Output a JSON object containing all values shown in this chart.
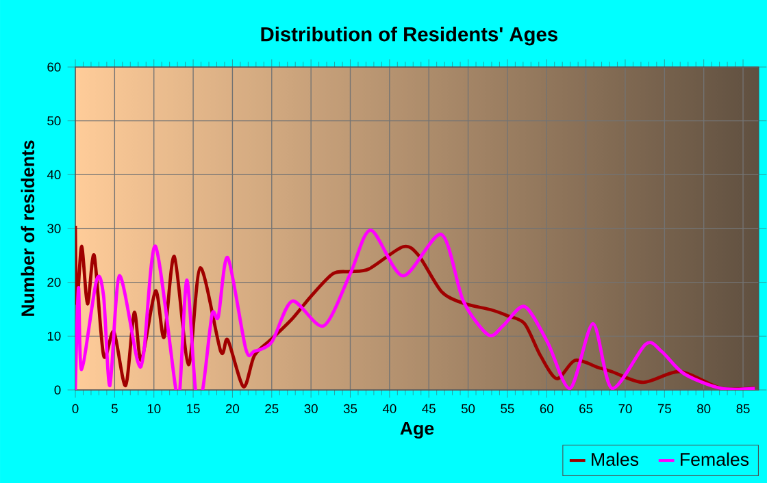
{
  "chart_data": {
    "type": "line",
    "title": "Distribution of Residents' Ages",
    "xlabel": "Age",
    "ylabel": "Number of residents",
    "xlim": [
      0,
      87
    ],
    "ylim": [
      0,
      60
    ],
    "xticks": [
      0,
      5,
      10,
      15,
      20,
      25,
      30,
      35,
      40,
      45,
      50,
      55,
      60,
      65,
      70,
      75,
      80,
      85
    ],
    "yticks": [
      0,
      10,
      20,
      30,
      40,
      50,
      60
    ],
    "grid": true,
    "legend": "bottom right",
    "marker": "none",
    "series": [
      {
        "name": "Males",
        "color": "#a00000",
        "x": [
          0,
          0.2,
          0.8,
          1.55,
          2.4,
          3.6,
          4.9,
          6.4,
          7.5,
          8.4,
          10.2,
          11.3,
          12.6,
          14.4,
          15.9,
          18.5,
          19.4,
          21.4,
          22.8,
          25,
          27.6,
          30,
          32.8,
          35,
          37.4,
          41.7,
          43.7,
          46.6,
          49.4,
          52.9,
          55,
          57.2,
          59.2,
          61.3,
          63.6,
          66.5,
          68.3,
          72.3,
          77,
          82.2,
          86.5
        ],
        "values": [
          30.5,
          16,
          26.7,
          16,
          25,
          6.4,
          10.8,
          0.8,
          14.4,
          5.5,
          18.4,
          9.8,
          24.8,
          4.7,
          22.7,
          7.2,
          9.3,
          0.6,
          6.4,
          9.5,
          13.2,
          17.4,
          21.6,
          22,
          22.5,
          26.6,
          25,
          18.3,
          16.1,
          14.9,
          13.8,
          12.3,
          6.4,
          2.1,
          5.5,
          4.2,
          3.4,
          1.4,
          3.4,
          0.3,
          0.4
        ]
      },
      {
        "name": "Females",
        "color": "#ff00ff",
        "x": [
          0,
          0.4,
          0.8,
          2.7,
          3.6,
          4.4,
          5.6,
          7.9,
          8.7,
          10.2,
          12.8,
          13.3,
          14.2,
          15.3,
          16.2,
          17.4,
          18.2,
          19.4,
          21.7,
          22.8,
          25,
          27.6,
          31.6,
          35,
          37.6,
          41.7,
          46.6,
          49.4,
          52.6,
          54.5,
          57.2,
          60.1,
          63,
          65.9,
          68.3,
          72.6,
          74.6,
          77.5,
          82.2,
          86.5
        ],
        "values": [
          0,
          19,
          3.8,
          20.4,
          17.4,
          0.8,
          21.2,
          5.5,
          6.8,
          26.7,
          0,
          0,
          20.4,
          0,
          0,
          14,
          13.6,
          24.6,
          7.6,
          7.2,
          8.9,
          16.5,
          11.9,
          21.6,
          29.7,
          21.2,
          28.9,
          16.5,
          10.2,
          12,
          15.5,
          8.9,
          0.3,
          12.3,
          0.3,
          8.5,
          7.2,
          3,
          0.3,
          0.3
        ]
      }
    ]
  }
}
